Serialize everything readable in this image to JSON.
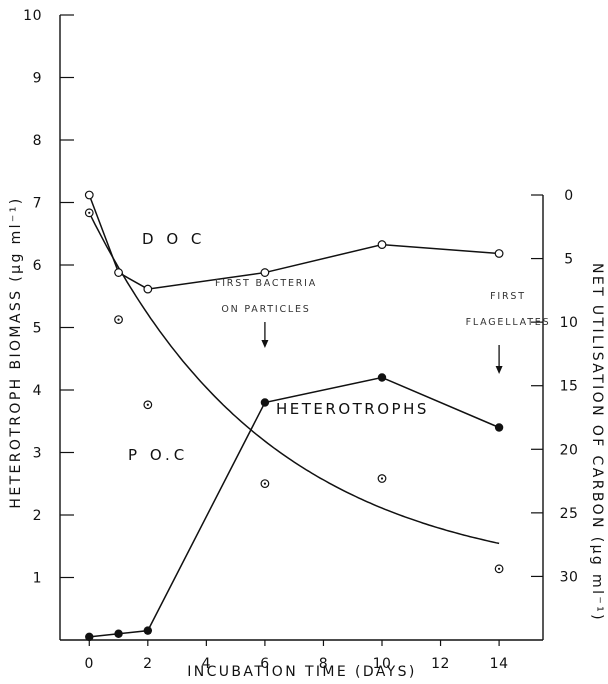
{
  "chart_data": {
    "type": "line",
    "xlabel": "INCUBATION TIME (DAYS)",
    "ylabel_left": "HETEROTROPH BIOMASS (μg ml⁻¹)",
    "ylabel_right": "NET UTILISATION OF CARBON (μg ml⁻¹)",
    "xlim": [
      -1,
      15.5
    ],
    "ylim_left": [
      0,
      10
    ],
    "ylim_right": [
      0,
      35
    ],
    "x_ticks": [
      "0",
      "2",
      "4",
      "6",
      "8",
      "10",
      "12",
      "14"
    ],
    "y_left_ticks": [
      "1",
      "2",
      "3",
      "4",
      "5",
      "6",
      "7",
      "8",
      "9",
      "10"
    ],
    "y_right_ticks": [
      "0",
      "5",
      "10",
      "15",
      "20",
      "25",
      "30"
    ],
    "series": [
      {
        "name": "D O C",
        "axis": "right",
        "marker": "open-circle",
        "x": [
          0,
          1,
          2,
          6,
          10,
          14
        ],
        "y": [
          0,
          6.1,
          7.4,
          6.1,
          3.9,
          4.6
        ]
      },
      {
        "name": "P O.C",
        "axis": "right",
        "marker": "dotted-circle",
        "x": [
          0,
          1,
          2,
          6,
          10,
          14
        ],
        "y": [
          1.4,
          9.8,
          16.5,
          22.7,
          22.3,
          29.4
        ]
      },
      {
        "name": "HETEROTROPHS",
        "axis": "left",
        "marker": "filled-circle",
        "x": [
          0,
          1,
          2,
          6,
          10,
          14
        ],
        "y": [
          0.05,
          0.1,
          0.15,
          3.8,
          4.2,
          3.4
        ]
      }
    ],
    "annotations": [
      {
        "lines": [
          "FIRST BACTERIA",
          "ON PARTICLES"
        ],
        "x": 6
      },
      {
        "lines": [
          "FIRST",
          "FLAGELLATES"
        ],
        "x": 14
      }
    ]
  }
}
